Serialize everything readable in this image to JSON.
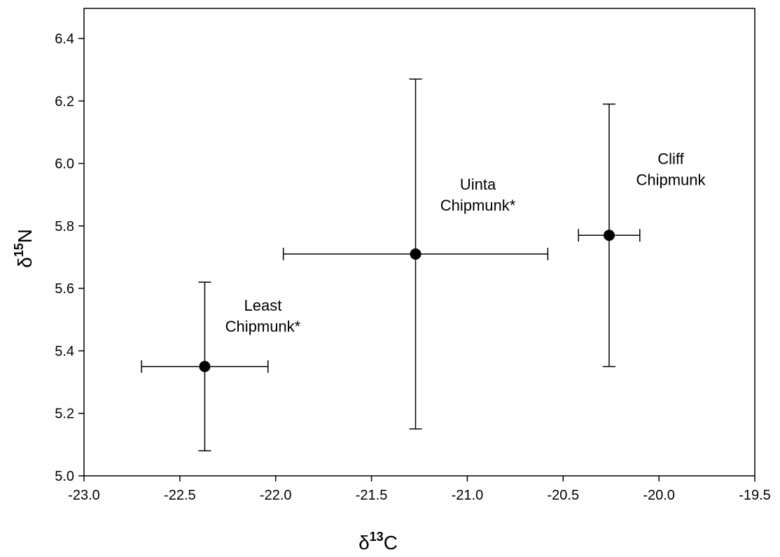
{
  "chart_data": {
    "type": "scatter",
    "x_label": [
      "δ",
      "13",
      "C"
    ],
    "y_label": [
      "δ",
      "15",
      "N"
    ],
    "labels": [
      [
        "Least",
        "Chipmunk*"
      ],
      [
        "Uinta",
        "Chipmunk*"
      ],
      [
        "Cliff",
        "Chipmunk"
      ]
    ],
    "x": [
      -22.37,
      -21.27,
      -20.26
    ],
    "y": [
      5.35,
      5.71,
      5.77
    ],
    "xerr": [
      0.33,
      0.69,
      0.16
    ],
    "yerr": [
      0.27,
      0.56,
      0.42
    ],
    "color": "#000000",
    "xlim": [
      -23,
      -19.5
    ],
    "ylim": [
      5,
      6.4
    ],
    "xticks": [
      {
        "value": -23,
        "label": "-23.0"
      },
      -22.5,
      {
        "value": -22,
        "label": "-22.0"
      },
      -21.5,
      {
        "value": -21,
        "label": "-21.0"
      },
      -20.5,
      {
        "value": -20,
        "label": "-20.0"
      },
      -19.5
    ],
    "yticks": [
      {
        "value": 5,
        "label": "5.0"
      },
      5.2,
      5.4,
      5.6,
      5.8,
      {
        "value": 6,
        "label": "6.0"
      },
      6.2,
      6.4
    ]
  }
}
